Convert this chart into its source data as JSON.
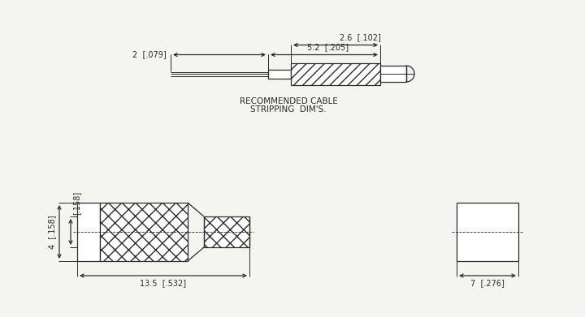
{
  "bg_color": "#f5f5f0",
  "line_color": "#2a2a2a",
  "font_size": 7.0,
  "font_family": "DejaVu Sans",
  "dim_label_2": "2  [.079]",
  "dim_label_2_6": "2.6  [.102]",
  "dim_label_5_2": "5.2  [.205]",
  "dim_label_4": "4  [.158]",
  "dim_label_158": "[.158]",
  "dim_label_13_5": "13.5  [.532]",
  "dim_label_7": "7  [.276]",
  "caption_line1": "RECOMMENDED CABLE",
  "caption_line2": "STRIPPING  DIM'S."
}
